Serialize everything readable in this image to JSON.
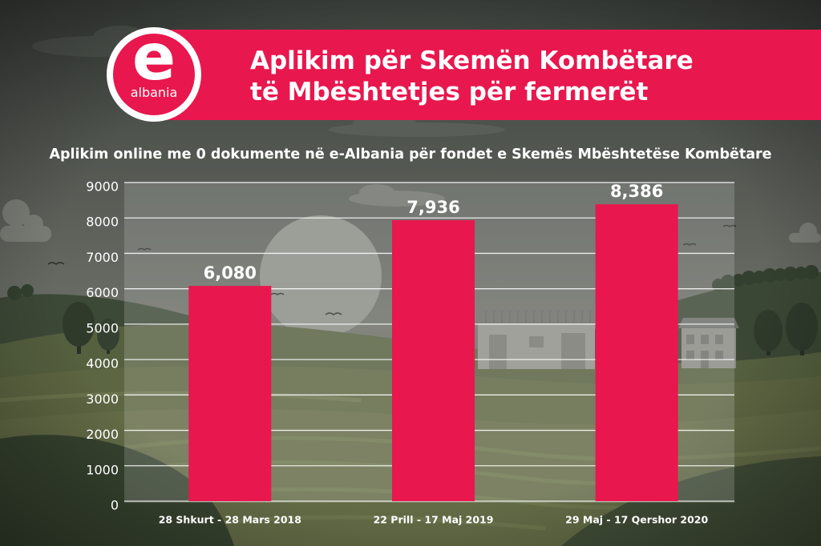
{
  "header": {
    "title_line_1": "Aplikim për Skemën Kombëtare",
    "title_line_2": "të Mbështetjes për fermerët"
  },
  "logo": {
    "letter": "e",
    "wordmark": "albania"
  },
  "colors": {
    "accent": "#e8174d",
    "text": "#ffffff"
  },
  "chart_data": {
    "type": "bar",
    "title": "Aplikim online me 0 dokumente në e-Albania për fondet e Skemës Mbështetëse Kombëtare",
    "categories": [
      "28 Shkurt - 28 Mars 2018",
      "22 Prill - 17 Maj 2019",
      "29 Maj - 17 Qershor 2020"
    ],
    "values": [
      6080,
      7936,
      8386
    ],
    "value_labels": [
      "6,080",
      "7,936",
      "8,386"
    ],
    "ylim": [
      0,
      9000
    ],
    "yticks": [
      0,
      1000,
      2000,
      3000,
      4000,
      5000,
      6000,
      7000,
      8000,
      9000
    ],
    "grid": true,
    "legend": "none"
  }
}
